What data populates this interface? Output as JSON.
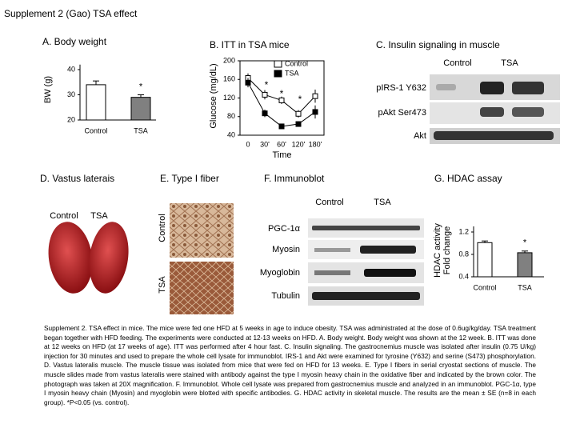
{
  "header": {
    "title": "Supplement 2 (Gao)  TSA effect"
  },
  "panel_a": {
    "type": "bar",
    "title": "A. Body weight",
    "y_label": "BW (g)",
    "categories": [
      "Control",
      "TSA"
    ],
    "values": [
      34,
      29
    ],
    "errors": [
      1.5,
      1
    ],
    "colors": [
      "#ffffff",
      "#808080"
    ],
    "ylim": [
      20,
      42
    ],
    "yticks": [
      20,
      30,
      40
    ],
    "annotations": [
      "*"
    ]
  },
  "panel_b": {
    "type": "line",
    "title": "B. ITT in TSA mice",
    "y_label": "Glucose (mg/dL)",
    "x_label": "Time",
    "categories": [
      "0",
      "30'",
      "60'",
      "120'",
      "180'"
    ],
    "series": [
      {
        "name": "Control",
        "color": "#ffffff",
        "values": [
          163,
          127,
          115,
          86,
          124
        ],
        "errors": [
          10,
          10,
          8,
          8,
          14
        ]
      },
      {
        "name": "TSA",
        "color": "#000000",
        "values": [
          153,
          87,
          59,
          64,
          90
        ],
        "errors": [
          10,
          8,
          5,
          6,
          14
        ]
      }
    ],
    "ylim": [
      40,
      200
    ],
    "yticks": [
      40,
      80,
      120,
      160,
      200
    ],
    "annotations": [
      "*",
      "*",
      "*"
    ]
  },
  "panel_c": {
    "title": "C. Insulin signaling in muscle",
    "columns": [
      "Control",
      "TSA"
    ],
    "rows": [
      "pIRS-1 Y632",
      "pAkt Ser473",
      "Akt"
    ]
  },
  "panel_d": {
    "title": "D. Vastus laterais",
    "columns": [
      "Control",
      "TSA"
    ]
  },
  "panel_e": {
    "title": "E. Type I fiber",
    "rows": [
      "Control",
      "TSA"
    ]
  },
  "panel_f": {
    "title": "F. Immunoblot",
    "columns": [
      "Control",
      "TSA"
    ],
    "rows": [
      "PGC-1α",
      "Myosin",
      "Myoglobin",
      "Tubulin"
    ]
  },
  "panel_g": {
    "type": "bar",
    "title": "G. HDAC assay",
    "y_label": [
      "HDAC activity",
      "Fold change"
    ],
    "categories": [
      "Control",
      "TSA"
    ],
    "values": [
      1.01,
      0.83
    ],
    "errors": [
      0.03,
      0.03
    ],
    "colors": [
      "#ffffff",
      "#808080"
    ],
    "ylim": [
      0.4,
      1.3
    ],
    "yticks": [
      0.4,
      0.8,
      1.2
    ],
    "annotations": [
      "*"
    ]
  },
  "caption": "Supplement 2. TSA effect in mice. The mice were fed one HFD at 5 weeks in age to induce obesity. TSA was administrated at the dose of 0.6ug/kg/day. TSA treatment began together with HFD feeding. The experiments were conducted at 12-13 weeks on HFD. A. Body weight. Body weight was shown at the 12 week. B. ITT was done at 12 weeks on HFD (at 17 weeks of age). ITT was performed after 4 hour fast. C. Insulin signaling. The gastrocnemius muscle was isolated after insulin (0.75 U/kg) injection for 30 minutes and used to prepare the whole cell lysate for immunoblot. IRS-1 and Akt were examined for tyrosine (Y632) and serine (S473) phosphorylation. D. Vastus lateralis muscle. The muscle tissue was isolated from mice that were fed on HFD for 13 weeks. E. Type I fibers in serial cryostat sections of muscle. The muscle slides made from vastus lateralis were stained with antibody against the type I myosin heavy chain in the oxidative fiber and indicated by the brown color. The photograph was taken at 20X magnification. F. Immunoblot. Whole cell lysate was prepared from gastrocnemius muscle and analyzed in an immunoblot. PGC-1α, type I myosin heavy chain (Myosin) and myoglobin were blotted with specific antibodies. G. HDAC activity in skeletal muscle. The results are the mean ± SE (n=8 in each group). *P<0.05 (vs. control)."
}
